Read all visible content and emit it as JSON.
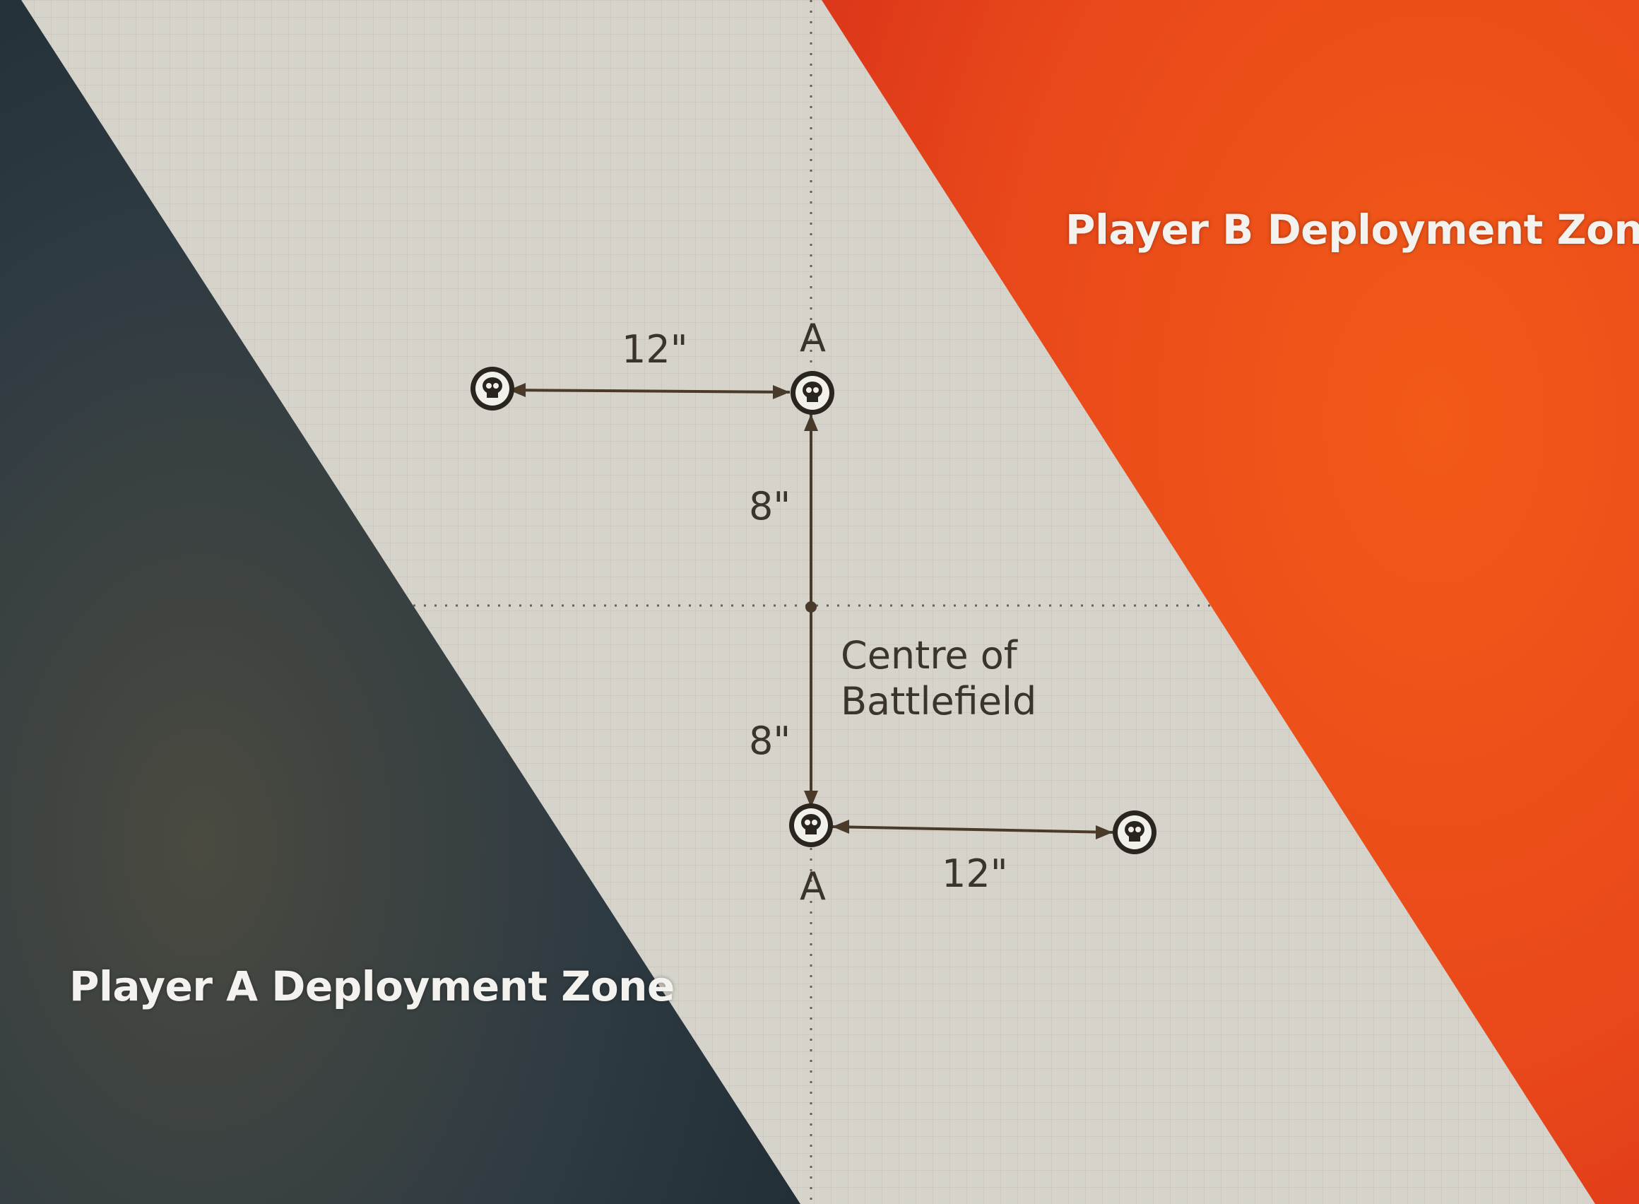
{
  "zones": {
    "player_a": "Player A Deployment Zone",
    "player_b": "Player B Deployment Zone"
  },
  "markers": {
    "top_a_letter": "A",
    "bottom_a_letter": "A"
  },
  "measurements": {
    "top_horizontal": "12\"",
    "bottom_horizontal": "12\"",
    "upper_vertical": "8\"",
    "lower_vertical": "8\""
  },
  "centre": {
    "line1": "Centre of",
    "line2": "Battlefield"
  },
  "colors": {
    "player_a_zone": "#2c3a44",
    "player_b_zone": "#ee4a16",
    "no_mans_land": "#d6d3cb",
    "measure_line": "#4a3a2a"
  }
}
